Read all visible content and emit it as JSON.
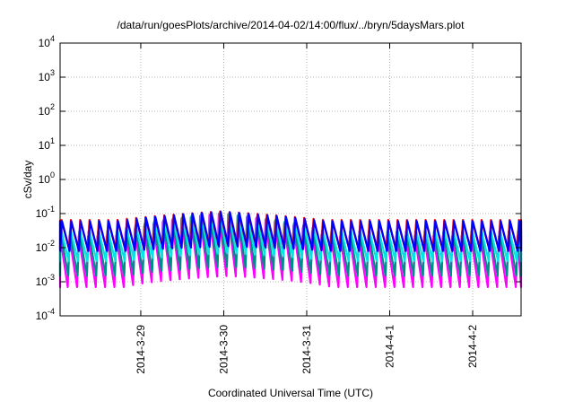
{
  "chart_data": {
    "type": "line",
    "title": "/data/run/goesPlots/archive/2014-04-02/14:00/flux/../bryn/5daysMars.plot",
    "xlabel": "Coordinated Universal Time (UTC)",
    "ylabel": "cSv/day",
    "y_scale": "log",
    "ylim": [
      0.0001,
      10000
    ],
    "y_ticks": [
      {
        "value": 0.0001,
        "base": "10",
        "exp": "-4"
      },
      {
        "value": 0.001,
        "base": "10",
        "exp": "-3"
      },
      {
        "value": 0.01,
        "base": "10",
        "exp": "-2"
      },
      {
        "value": 0.1,
        "base": "10",
        "exp": "-1"
      },
      {
        "value": 1,
        "base": "10",
        "exp": "0"
      },
      {
        "value": 10,
        "base": "10",
        "exp": "1"
      },
      {
        "value": 100,
        "base": "10",
        "exp": "2"
      },
      {
        "value": 1000,
        "base": "10",
        "exp": "3"
      },
      {
        "value": 10000,
        "base": "10",
        "exp": "4"
      }
    ],
    "xlim": [
      "2014-03-28T00:40",
      "2014-04-02T14:00"
    ],
    "x_ticks": [
      "2014-3-29",
      "2014-3-30",
      "2014-3-31",
      "2014-4-1",
      "2014-4-2"
    ],
    "x_tick_dates": [
      "2014-03-29",
      "2014-03-30",
      "2014-03-31",
      "2014-04-01",
      "2014-04-02"
    ],
    "grid": true,
    "legend": "none",
    "sawtooth_period_hours": 2.7,
    "series": [
      {
        "color": "#ff00ff",
        "peak": 0.022,
        "trough": 0.0007
      },
      {
        "color": "#008b8b",
        "peak": 0.03,
        "trough": 0.0015
      },
      {
        "color": "#00e5e5",
        "peak": 0.035,
        "trough": 0.004
      },
      {
        "color": "#ff0000",
        "peak": 0.065,
        "trough": 0.009
      },
      {
        "color": "#0000ff",
        "peak": 0.06,
        "trough": 0.008
      }
    ],
    "spike": {
      "center": "2014-03-29T23:00",
      "peak": 0.15
    }
  }
}
